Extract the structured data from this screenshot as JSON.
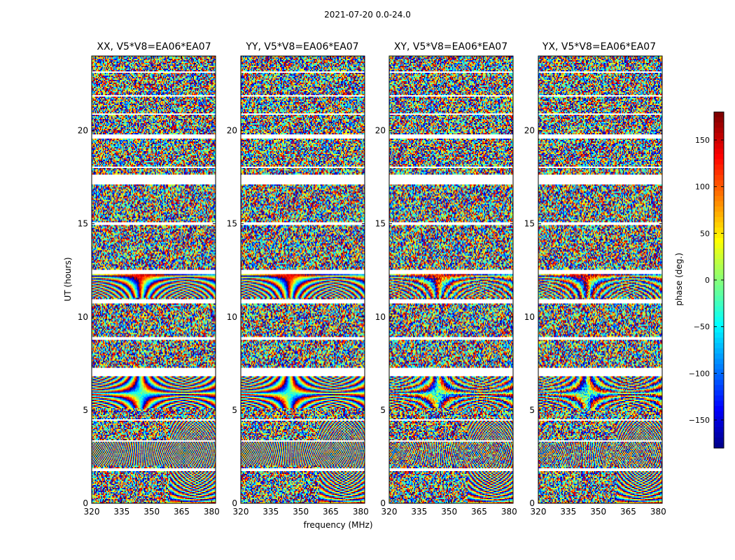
{
  "figure": {
    "suptitle": "2021-07-20 0.0-24.0"
  },
  "colors": {
    "jet_low": "#00007f",
    "jet_mid": "#7fff7f",
    "jet_high": "#7f0000",
    "flag": "#ffffff",
    "band": "#000000"
  },
  "chart_data": [
    {
      "type": "heatmap",
      "title": "XX, V5*V8=EA06*EA07",
      "xlabel": "",
      "ylabel": "UT (hours)",
      "xlim": [
        320,
        382
      ],
      "ylim": [
        0,
        24
      ],
      "xticks": [
        "320",
        "335",
        "350",
        "365",
        "380"
      ],
      "yticks": [
        "0",
        "5",
        "10",
        "15",
        "20"
      ],
      "value": "phase (deg.)",
      "vlim": [
        -180,
        180
      ]
    },
    {
      "type": "heatmap",
      "title": "YY, V5*V8=EA06*EA07",
      "xlabel": "frequency (MHz)",
      "ylabel": "",
      "xlim": [
        320,
        382
      ],
      "ylim": [
        0,
        24
      ],
      "xticks": [
        "320",
        "335",
        "350",
        "365",
        "380"
      ],
      "yticks": [
        "0",
        "5",
        "10",
        "15",
        "20"
      ],
      "value": "phase (deg.)",
      "vlim": [
        -180,
        180
      ]
    },
    {
      "type": "heatmap",
      "title": "XY, V5*V8=EA06*EA07",
      "xlabel": "",
      "ylabel": "",
      "xlim": [
        320,
        382
      ],
      "ylim": [
        0,
        24
      ],
      "xticks": [
        "320",
        "335",
        "350",
        "365",
        "380"
      ],
      "yticks": [
        "0",
        "5",
        "10",
        "15",
        "20"
      ],
      "value": "phase (deg.)",
      "vlim": [
        -180,
        180
      ]
    },
    {
      "type": "heatmap",
      "title": "YX, V5*V8=EA06*EA07",
      "xlabel": "",
      "ylabel": "",
      "xlim": [
        320,
        382
      ],
      "ylim": [
        0,
        24
      ],
      "xticks": [
        "320",
        "335",
        "350",
        "365",
        "380"
      ],
      "yticks": [
        "0",
        "5",
        "10",
        "15",
        "20"
      ],
      "value": "phase (deg.)",
      "vlim": [
        -180,
        180
      ]
    }
  ],
  "colorbar": {
    "label": "phase (deg.)",
    "range": [
      -180,
      180
    ],
    "ticks": [
      "150",
      "100",
      "50",
      "0",
      "−50",
      "−100",
      "−150"
    ]
  },
  "flag_gaps_ut": [
    [
      0.95,
      1.0
    ],
    [
      1.75,
      1.85
    ],
    [
      3.3,
      3.4
    ],
    [
      4.45,
      4.5
    ],
    [
      5.0,
      5.05
    ],
    [
      6.85,
      7.25
    ],
    [
      8.75,
      8.95
    ],
    [
      10.7,
      10.95
    ],
    [
      12.3,
      12.5
    ],
    [
      14.9,
      15.05
    ],
    [
      15.95,
      16.0
    ],
    [
      17.1,
      17.6
    ],
    [
      18.0,
      18.1
    ],
    [
      19.6,
      19.8
    ],
    [
      20.85,
      20.95
    ],
    [
      21.8,
      21.9
    ],
    [
      23.1,
      23.2
    ]
  ],
  "ripple_blocks_ut": [
    [
      2.0,
      3.3
    ],
    [
      5.1,
      6.8
    ],
    [
      11.0,
      12.3
    ]
  ]
}
